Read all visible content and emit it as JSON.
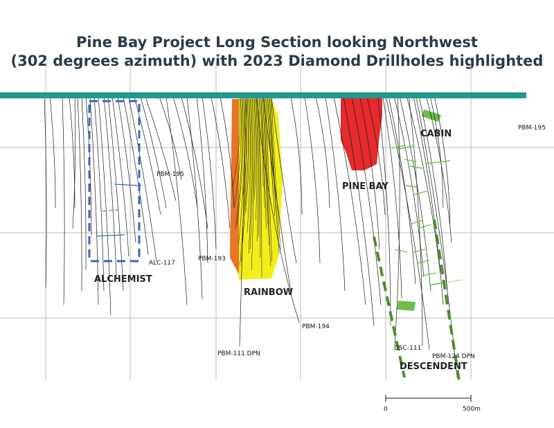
{
  "title": {
    "line1": "Pine Bay Project Long Section looking Northwest",
    "line2": "(302 degrees azimuth) with 2023 Diamond Drillholes highlighted"
  },
  "zones": {
    "alchemist": "ALCHEMIST",
    "rainbow": "RAINBOW",
    "pine_bay": "PINE BAY",
    "cabin": "CABIN",
    "descendent": "DESCENDENT"
  },
  "drillholes": {
    "pbm195_right": "PBM-195",
    "pbm195": "PBM-195",
    "alc117": "ALC-117",
    "pbm193": "PBM-193",
    "pbm194": "PBM-194",
    "pbm111": "PBM-111 DPN",
    "dsc111": "DSC-111",
    "pbm124": "PBM-124 DPN"
  },
  "scale_bar": {
    "start": "0",
    "end": "500m"
  },
  "colors": {
    "surface": "#1e9a8f",
    "rainbow_core": "#f2ee1c",
    "rainbow_edge": "#e8732a",
    "pine_bay": "#e52b2b",
    "cabin": "#6cc04a",
    "alchemist_outline": "#3a66b5",
    "descendent_outline": "#4f8c2c",
    "grid": "#b8b8b8",
    "drill": "#1a1a1a"
  }
}
